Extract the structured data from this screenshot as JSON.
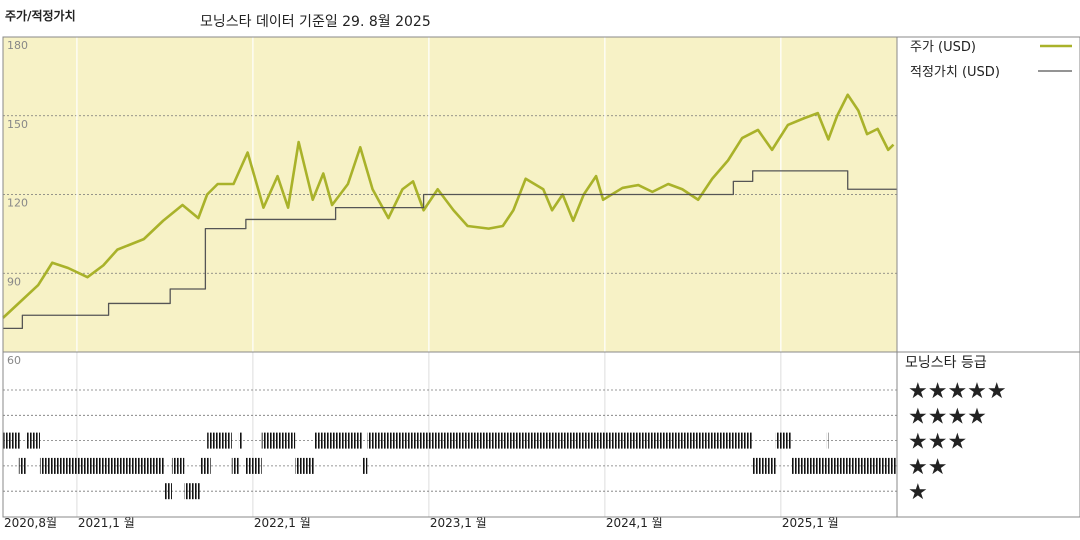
{
  "chart_data": {
    "type": "line",
    "title": "주가/적정가치",
    "subtitle": "모닝스타 데이터 기준일 29. 8월 2025",
    "xlim": [
      2020.58,
      2025.66
    ],
    "xticks": [
      {
        "value": 2020.58,
        "label": "2020,8월"
      },
      {
        "value": 2021,
        "label": "2021,1 월"
      },
      {
        "value": 2022,
        "label": "2022,1 월"
      },
      {
        "value": 2023,
        "label": "2023,1 월"
      },
      {
        "value": 2024,
        "label": "2024,1 월"
      },
      {
        "value": 2025,
        "label": "2025,1 월"
      }
    ],
    "ylim": [
      60,
      180
    ],
    "yticks": [
      60,
      90,
      120,
      150,
      180
    ],
    "grid": true,
    "series": [
      {
        "name": "주가 (USD)",
        "color": "#a9b22a",
        "step": false,
        "x": [
          2020.58,
          2020.66,
          2020.78,
          2020.86,
          2020.95,
          2021.06,
          2021.15,
          2021.23,
          2021.38,
          2021.49,
          2021.6,
          2021.69,
          2021.74,
          2021.8,
          2021.89,
          2021.97,
          2022.06,
          2022.14,
          2022.2,
          2022.26,
          2022.34,
          2022.4,
          2022.45,
          2022.54,
          2022.61,
          2022.68,
          2022.77,
          2022.85,
          2022.91,
          2022.97,
          2023.05,
          2023.14,
          2023.22,
          2023.34,
          2023.42,
          2023.48,
          2023.55,
          2023.65,
          2023.7,
          2023.76,
          2023.82,
          2023.88,
          2023.95,
          2023.99,
          2024.1,
          2024.19,
          2024.27,
          2024.36,
          2024.44,
          2024.53,
          2024.61,
          2024.7,
          2024.78,
          2024.87,
          2024.95,
          2025.04,
          2025.13,
          2025.21,
          2025.27,
          2025.32,
          2025.38,
          2025.44,
          2025.49,
          2025.55,
          2025.61,
          2025.64
        ],
        "values": [
          73,
          78,
          85.5,
          94,
          92,
          88.5,
          93,
          99,
          103,
          110,
          116,
          111,
          120,
          124,
          124,
          136,
          115,
          127,
          115,
          140,
          118,
          128,
          116,
          124,
          138,
          122,
          111,
          122,
          125,
          114,
          122,
          114,
          108,
          107,
          108,
          114,
          126,
          122,
          114,
          120,
          110,
          120,
          127,
          118,
          122.5,
          123.6,
          121,
          124,
          122,
          118,
          126,
          133,
          141.5,
          144.6,
          137,
          146.5,
          149,
          151,
          141,
          150,
          158,
          152,
          143,
          145,
          137,
          139
        ]
      },
      {
        "name": "적정가치 (USD)",
        "color": "#555555",
        "step": true,
        "x": [
          2020.58,
          2020.69,
          2021.18,
          2021.53,
          2021.73,
          2021.96,
          2022.47,
          2022.97,
          2024.73,
          2024.84,
          2025.38
        ],
        "values": [
          69,
          74,
          78.5,
          84,
          107,
          110.5,
          115,
          120,
          125,
          129,
          122
        ]
      }
    ],
    "rating_title": "모닝스타 등급",
    "rating_levels": [
      {
        "stars": 5,
        "label": "★★★★★"
      },
      {
        "stars": 4,
        "label": "★★★★"
      },
      {
        "stars": 3,
        "label": "★★★"
      },
      {
        "stars": 2,
        "label": "★★"
      },
      {
        "stars": 1,
        "label": "★"
      }
    ],
    "rating_periods": [
      {
        "start": 2020.58,
        "end": 2020.68,
        "stars": 3
      },
      {
        "start": 2020.71,
        "end": 2020.79,
        "stars": 3
      },
      {
        "start": 2021.74,
        "end": 2021.88,
        "stars": 3
      },
      {
        "start": 2021.92,
        "end": 2021.94,
        "stars": 3
      },
      {
        "start": 2022.05,
        "end": 2022.24,
        "stars": 3
      },
      {
        "start": 2022.35,
        "end": 2022.62,
        "stars": 3
      },
      {
        "start": 2022.65,
        "end": 2024.84,
        "stars": 3
      },
      {
        "start": 2024.97,
        "end": 2025.06,
        "stars": 3
      },
      {
        "start": 2025.26,
        "end": 2025.27,
        "stars": 3
      },
      {
        "start": 2020.67,
        "end": 2020.71,
        "stars": 2
      },
      {
        "start": 2020.79,
        "end": 2021.5,
        "stars": 2
      },
      {
        "start": 2021.54,
        "end": 2021.61,
        "stars": 2
      },
      {
        "start": 2021.7,
        "end": 2021.76,
        "stars": 2
      },
      {
        "start": 2021.88,
        "end": 2021.92,
        "stars": 2
      },
      {
        "start": 2021.96,
        "end": 2022.05,
        "stars": 2
      },
      {
        "start": 2022.24,
        "end": 2022.35,
        "stars": 2
      },
      {
        "start": 2022.62,
        "end": 2022.65,
        "stars": 2
      },
      {
        "start": 2024.84,
        "end": 2024.97,
        "stars": 2
      },
      {
        "start": 2025.06,
        "end": 2025.66,
        "stars": 2
      },
      {
        "start": 2021.5,
        "end": 2021.54,
        "stars": 1
      },
      {
        "start": 2021.61,
        "end": 2021.7,
        "stars": 1
      }
    ]
  }
}
